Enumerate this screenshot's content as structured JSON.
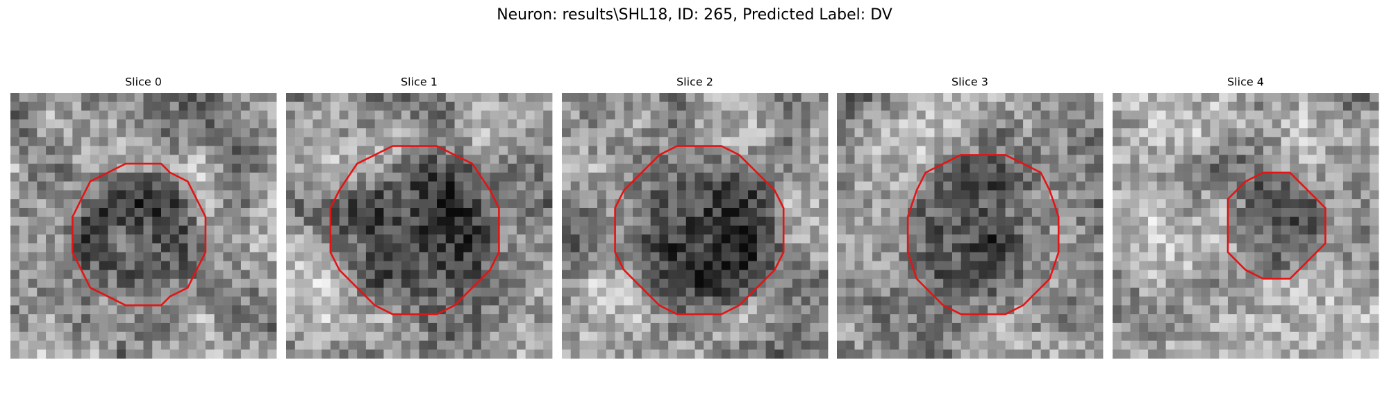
{
  "title": "Neuron: results\\SHL18, ID: 265, Predicted Label: DV",
  "panels": [
    {
      "title": "Slice 0"
    },
    {
      "title": "Slice 1"
    },
    {
      "title": "Slice 2"
    },
    {
      "title": "Slice 3"
    },
    {
      "title": "Slice 4"
    }
  ]
}
